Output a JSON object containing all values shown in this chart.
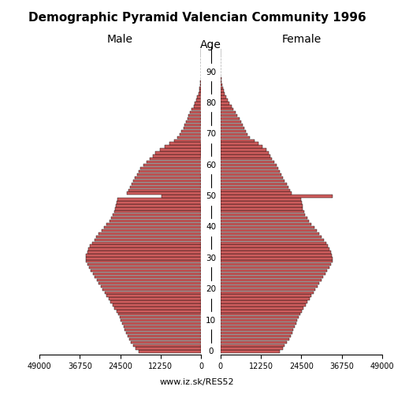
{
  "title": "Demographic Pyramid Valencian Community 1996",
  "xlabel_left": "Male",
  "xlabel_right": "Female",
  "age_label": "Age",
  "xlim": 49000,
  "bar_color": "#cd5c5c",
  "bar_edge_color": "#000000",
  "background_color": "#ffffff",
  "url_text": "www.iz.sk/RES52",
  "male": [
    18500,
    19200,
    19800,
    20100,
    20500,
    21000,
    21500,
    22000,
    22500,
    23000,
    23500,
    24000,
    24500,
    25000,
    25500,
    26000,
    26500,
    27000,
    27500,
    28000,
    28500,
    29000,
    29500,
    30000,
    30500,
    31000,
    31500,
    32000,
    32500,
    33000,
    33500,
    34000,
    34500,
    34800,
    35000,
    34800,
    34500,
    34000,
    33500,
    33000,
    32000,
    31000,
    30000,
    29000,
    28000,
    27500,
    27200,
    27000,
    26800,
    26500,
    12500,
    22000,
    21500,
    21000,
    20500,
    20000,
    19500,
    19000,
    18500,
    18000,
    17000,
    16000,
    15200,
    14500,
    13800,
    12800,
    11500,
    10000,
    8500,
    7200,
    6500,
    6000,
    5600,
    5200,
    4800,
    4400,
    4000,
    3500,
    3000,
    2500,
    2000,
    1600,
    1200,
    900,
    650,
    450,
    300,
    190,
    120,
    70,
    40,
    20,
    10,
    4,
    1,
    0,
    0,
    0
  ],
  "female": [
    17500,
    18200,
    18800,
    19100,
    19500,
    20000,
    20500,
    21000,
    21500,
    22000,
    22500,
    23000,
    23500,
    24000,
    24500,
    25000,
    25500,
    26000,
    26500,
    27000,
    27500,
    28000,
    28500,
    29000,
    29500,
    30000,
    30500,
    31000,
    31500,
    32000,
    32500,
    33000,
    33500,
    33800,
    34000,
    33800,
    33500,
    33000,
    32500,
    32000,
    31000,
    30000,
    29000,
    28000,
    27000,
    26500,
    26200,
    26000,
    25800,
    25500,
    34000,
    23000,
    22500,
    22000,
    21500,
    21000,
    20500,
    20000,
    19500,
    19000,
    18500,
    18000,
    17500,
    17000,
    16500,
    15800,
    14800,
    13500,
    12000,
    10500,
    9500,
    9000,
    8500,
    8000,
    7500,
    7000,
    6400,
    5700,
    4900,
    4100,
    3400,
    2800,
    2200,
    1700,
    1200,
    850,
    580,
    370,
    220,
    120,
    60,
    28,
    12,
    4,
    1,
    0,
    0,
    0
  ]
}
